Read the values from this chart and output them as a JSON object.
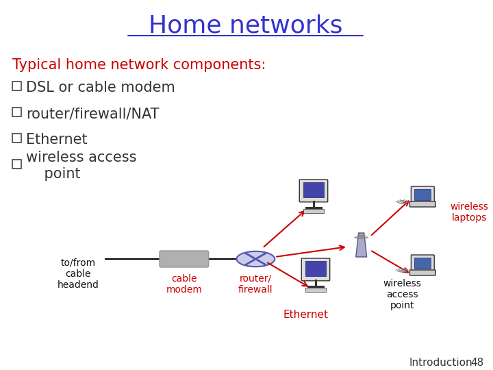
{
  "title": "Home networks",
  "title_color": "#3333cc",
  "title_underline": true,
  "title_fontsize": 26,
  "title_font": "Comic Sans MS",
  "bg_color": "#ffffff",
  "heading_text": "Typical home network components:",
  "heading_color": "#cc0000",
  "heading_fontsize": 15,
  "bullet_color": "#333333",
  "bullet_fontsize": 15,
  "bullet_font": "Comic Sans MS",
  "bullets": [
    "DSL or cable modem",
    "router/firewall/NAT",
    "Ethernet",
    "wireless access\n    point"
  ],
  "label_color_red": "#cc0000",
  "label_color_black": "#111111",
  "footer_text": "Introduction",
  "footer_num": "48",
  "footer_fontsize": 11
}
